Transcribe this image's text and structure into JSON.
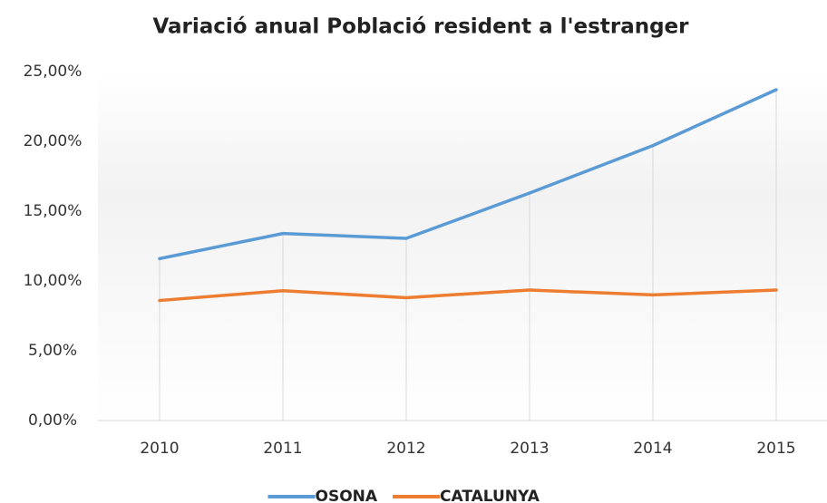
{
  "chart_data": {
    "type": "line",
    "title": "Variació anual Població resident a l'estranger",
    "categories": [
      "2010",
      "2011",
      "2012",
      "2013",
      "2014",
      "2015"
    ],
    "series": [
      {
        "name": "OSONA",
        "color": "#5b9bd5",
        "values": [
          11.6,
          13.4,
          13.05,
          16.3,
          19.7,
          23.7
        ]
      },
      {
        "name": "CATALUNYA",
        "color": "#ed7d31",
        "values": [
          8.6,
          9.3,
          8.8,
          9.35,
          9.0,
          9.35
        ]
      }
    ],
    "ylim": [
      0,
      25
    ],
    "yticks": [
      {
        "value": 0,
        "label": "0,00%"
      },
      {
        "value": 5,
        "label": "5,00%"
      },
      {
        "value": 10,
        "label": "10,00%"
      },
      {
        "value": 15,
        "label": "15,00%"
      },
      {
        "value": 20,
        "label": "20,00%"
      },
      {
        "value": 25,
        "label": "25,00%"
      }
    ],
    "legend": "bottom"
  }
}
